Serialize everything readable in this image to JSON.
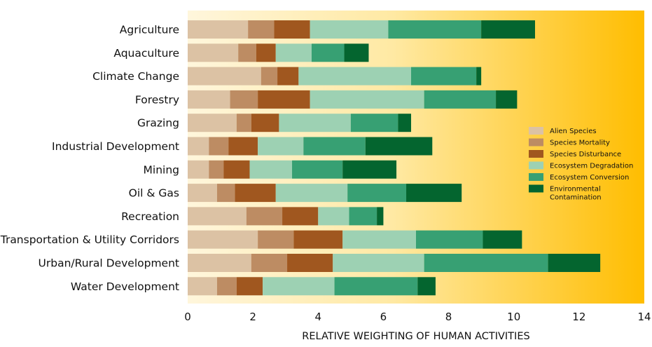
{
  "chart_data": {
    "type": "bar",
    "orientation": "horizontal",
    "stacked": true,
    "title": "",
    "xlabel": "RELATIVE WEIGHTING OF HUMAN ACTIVITIES",
    "ylabel": "",
    "xlim": [
      0,
      14
    ],
    "xticks": [
      0,
      2,
      4,
      6,
      8,
      10,
      12,
      14
    ],
    "grid": false,
    "legend_position": "right",
    "background": "horizontal gradient from pale cream to amber",
    "colors": {
      "background_start": "#fff6dc",
      "background_end": "#ffbd00"
    },
    "categories": [
      "Agriculture",
      "Aquaculture",
      "Climate Change",
      "Forestry",
      "Grazing",
      "Industrial Development",
      "Mining",
      "Oil & Gas",
      "Recreation",
      "Transportation & Utility Corridors",
      "Urban/Rural Development",
      "Water Development"
    ],
    "series": [
      {
        "name": "Alien Species",
        "color": "#dcc2a4",
        "values": [
          1.85,
          1.55,
          2.25,
          1.3,
          1.5,
          0.65,
          0.65,
          0.9,
          1.8,
          2.15,
          1.95,
          0.9
        ]
      },
      {
        "name": "Species Mortality",
        "color": "#bd8c63",
        "values": [
          0.8,
          0.55,
          0.5,
          0.85,
          0.45,
          0.6,
          0.45,
          0.55,
          1.1,
          1.1,
          1.1,
          0.6
        ]
      },
      {
        "name": "Species Disturbance",
        "color": "#a0571f",
        "values": [
          1.1,
          0.6,
          0.65,
          1.6,
          0.85,
          0.9,
          0.8,
          1.25,
          1.1,
          1.5,
          1.4,
          0.8
        ]
      },
      {
        "name": "Ecosystem Degradation",
        "color": "#9dd1b3",
        "values": [
          2.4,
          1.1,
          3.45,
          3.5,
          2.2,
          1.4,
          1.3,
          2.2,
          0.95,
          2.25,
          2.8,
          2.2
        ]
      },
      {
        "name": "Ecosystem Conversion",
        "color": "#37a073",
        "values": [
          2.85,
          1.0,
          2.0,
          2.2,
          1.45,
          1.9,
          1.55,
          1.8,
          0.85,
          2.05,
          3.8,
          2.55
        ]
      },
      {
        "name": "Environmental Contamination",
        "color": "#04652f",
        "values": [
          1.65,
          0.75,
          0.15,
          0.65,
          0.4,
          2.05,
          1.65,
          1.7,
          0.2,
          1.2,
          1.6,
          0.55
        ]
      }
    ],
    "legend_labels": [
      [
        "Alien Species"
      ],
      [
        "Species Mortality"
      ],
      [
        "Species Disturbance"
      ],
      [
        "Ecosystem Degradation"
      ],
      [
        "Ecosystem Conversion"
      ],
      [
        "Environmental",
        "Contamination"
      ]
    ]
  }
}
